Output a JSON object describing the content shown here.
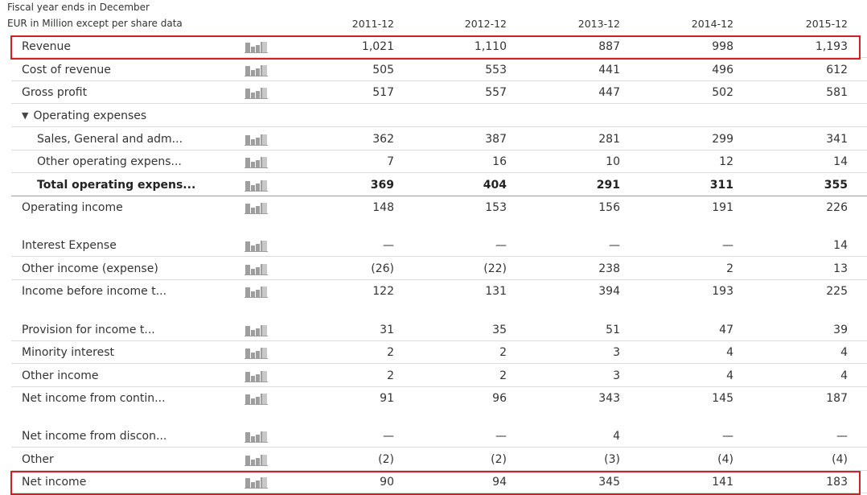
{
  "header": {
    "fiscal_note": "Fiscal year ends in December",
    "units_note": "EUR in Million except per share data",
    "years": [
      "2011-12",
      "2012-12",
      "2013-12",
      "2014-12",
      "2015-12"
    ]
  },
  "rows": [
    {
      "label": "Revenue",
      "values": [
        "1,021",
        "1,110",
        "887",
        "998",
        "1,193"
      ],
      "highlight": true
    },
    {
      "label": "Cost of revenue",
      "values": [
        "505",
        "553",
        "441",
        "496",
        "612"
      ]
    },
    {
      "label": "Gross profit",
      "values": [
        "517",
        "557",
        "447",
        "502",
        "581"
      ]
    },
    {
      "label": "Operating expenses",
      "values": [],
      "section": true
    },
    {
      "label": "Sales, General and adm...",
      "values": [
        "362",
        "387",
        "281",
        "299",
        "341"
      ],
      "indent": true
    },
    {
      "label": "Other operating expens...",
      "values": [
        "7",
        "16",
        "10",
        "12",
        "14"
      ],
      "indent": true
    },
    {
      "label": "Total operating expens...",
      "values": [
        "369",
        "404",
        "291",
        "311",
        "355"
      ],
      "indent": true,
      "bold": true
    },
    {
      "label": "Operating income",
      "values": [
        "148",
        "153",
        "156",
        "191",
        "226"
      ]
    },
    {
      "label": "Interest Expense",
      "values": [
        "—",
        "—",
        "—",
        "—",
        "14"
      ]
    },
    {
      "label": "Other income (expense)",
      "values": [
        "(26)",
        "(22)",
        "238",
        "2",
        "13"
      ]
    },
    {
      "label": "Income before income t...",
      "values": [
        "122",
        "131",
        "394",
        "193",
        "225"
      ]
    },
    {
      "label": "Provision for income t...",
      "values": [
        "31",
        "35",
        "51",
        "47",
        "39"
      ]
    },
    {
      "label": "Minority interest",
      "values": [
        "2",
        "2",
        "3",
        "4",
        "4"
      ]
    },
    {
      "label": "Other income",
      "values": [
        "2",
        "2",
        "3",
        "4",
        "4"
      ]
    },
    {
      "label": "Net income from contin...",
      "values": [
        "91",
        "96",
        "343",
        "145",
        "187"
      ]
    },
    {
      "label": "Net income from discon...",
      "values": [
        "—",
        "—",
        "4",
        "—",
        "—"
      ]
    },
    {
      "label": "Other",
      "values": [
        "(2)",
        "(2)",
        "(3)",
        "(4)",
        "(4)"
      ]
    },
    {
      "label": "Net income",
      "values": [
        "90",
        "94",
        "345",
        "141",
        "183"
      ],
      "highlight": true
    }
  ],
  "colors": {
    "highlight": "#d21f25",
    "divider": "#dcdcdc",
    "chart_icon": "#9e9e9e"
  },
  "icons": {
    "section_toggle": "triangle-down-icon",
    "row_chart": "bar-chart-icon"
  }
}
